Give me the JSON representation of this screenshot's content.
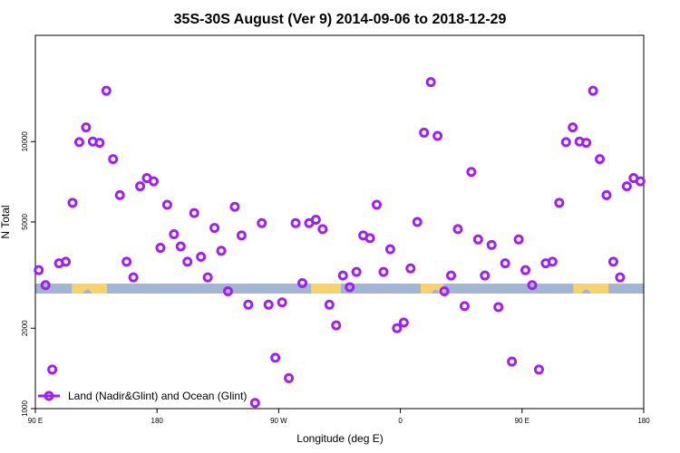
{
  "chart_data": {
    "type": "scatter",
    "title": "35S-30S August (Ver 9)   2014-09-06 to 2018-12-29",
    "xlabel": "Longitude (deg E)",
    "ylabel": "N Total",
    "x_axis": {
      "range_deg": [
        90,
        450
      ],
      "ticks": [
        {
          "value": 90,
          "label": "90 E"
        },
        {
          "value": 180,
          "label": "180"
        },
        {
          "value": 270,
          "label": "90 W"
        },
        {
          "value": 360,
          "label": "0"
        },
        {
          "value": 450,
          "label": "90 E"
        },
        {
          "value": 540,
          "label": "180"
        }
      ],
      "plot_range": [
        90,
        540
      ]
    },
    "y_axis": {
      "scale": "log",
      "range": [
        1000,
        25000
      ],
      "ticks": [
        {
          "value": 1000,
          "label": "1000"
        },
        {
          "value": 2000,
          "label": "2000"
        },
        {
          "value": 5000,
          "label": "5000"
        },
        {
          "value": 10000,
          "label": "10000"
        }
      ]
    },
    "series": [
      {
        "name": "Land (Nadir&Glint) and Ocean (Glint)",
        "color": "#a020f0",
        "marker": "open-circle",
        "points": [
          [
            92.5,
            3300
          ],
          [
            97.5,
            2900
          ],
          [
            102.5,
            1400
          ],
          [
            107.5,
            3500
          ],
          [
            112.5,
            3550
          ],
          [
            117.5,
            5900
          ],
          [
            122.5,
            9950
          ],
          [
            127.5,
            11300
          ],
          [
            132.5,
            10000
          ],
          [
            137.5,
            9900
          ],
          [
            142.5,
            15500
          ],
          [
            147.5,
            8600
          ],
          [
            152.5,
            6300
          ],
          [
            157.5,
            3550
          ],
          [
            162.5,
            3100
          ],
          [
            167.5,
            6800
          ],
          [
            172.5,
            7300
          ],
          [
            177.5,
            7100
          ],
          [
            182.5,
            4000
          ],
          [
            187.5,
            5800
          ],
          [
            192.5,
            4500
          ],
          [
            197.5,
            4050
          ],
          [
            202.5,
            3550
          ],
          [
            207.5,
            5400
          ],
          [
            212.5,
            3700
          ],
          [
            217.5,
            3100
          ],
          [
            222.5,
            4750
          ],
          [
            227.5,
            3900
          ],
          [
            232.5,
            2750
          ],
          [
            237.5,
            5700
          ],
          [
            242.5,
            4450
          ],
          [
            247.5,
            2450
          ],
          [
            252.5,
            1050
          ],
          [
            257.5,
            4950
          ],
          [
            262.5,
            2450
          ],
          [
            267.5,
            1550
          ],
          [
            272.5,
            2500
          ],
          [
            277.5,
            1300
          ],
          [
            282.5,
            4950
          ],
          [
            287.5,
            2950
          ],
          [
            292.5,
            4950
          ],
          [
            297.5,
            5100
          ],
          [
            302.5,
            4700
          ],
          [
            307.5,
            2450
          ],
          [
            312.5,
            2050
          ],
          [
            317.5,
            3150
          ],
          [
            322.5,
            2850
          ],
          [
            327.5,
            3250
          ],
          [
            332.5,
            4450
          ],
          [
            337.5,
            4350
          ],
          [
            342.5,
            5800
          ],
          [
            347.5,
            3250
          ],
          [
            352.5,
            3950
          ],
          [
            357.5,
            2000
          ],
          [
            362.5,
            2100
          ],
          [
            367.5,
            3350
          ],
          [
            372.5,
            5000
          ],
          [
            377.5,
            10800
          ],
          [
            382.5,
            16700
          ],
          [
            387.5,
            10500
          ],
          [
            392.5,
            2750
          ],
          [
            397.5,
            3150
          ],
          [
            402.5,
            4700
          ],
          [
            407.5,
            2420
          ],
          [
            412.5,
            7700
          ],
          [
            417.5,
            4300
          ],
          [
            422.5,
            3150
          ],
          [
            427.5,
            4100
          ],
          [
            432.5,
            2400
          ],
          [
            437.5,
            3500
          ],
          [
            442.5,
            1500
          ],
          [
            447.5,
            4300
          ],
          [
            452.5,
            3300
          ],
          [
            457.5,
            2900
          ],
          [
            462.5,
            1400
          ],
          [
            467.5,
            3500
          ],
          [
            472.5,
            3550
          ],
          [
            477.5,
            5900
          ],
          [
            482.5,
            9950
          ],
          [
            487.5,
            11300
          ],
          [
            492.5,
            10000
          ],
          [
            497.5,
            9900
          ],
          [
            502.5,
            15500
          ],
          [
            507.5,
            8600
          ],
          [
            512.5,
            6300
          ],
          [
            517.5,
            3550
          ],
          [
            522.5,
            3100
          ],
          [
            527.5,
            6800
          ],
          [
            532.5,
            7300
          ],
          [
            537.5,
            7100
          ]
        ]
      }
    ],
    "legend": {
      "placement": "bottom-left",
      "entries": [
        "Land (Nadir&Glint) and Ocean (Glint)"
      ]
    },
    "grid": false,
    "colors": {
      "marker": "#a020f0",
      "ocean": "#a3b5d4",
      "land": "#f9d36a"
    }
  }
}
